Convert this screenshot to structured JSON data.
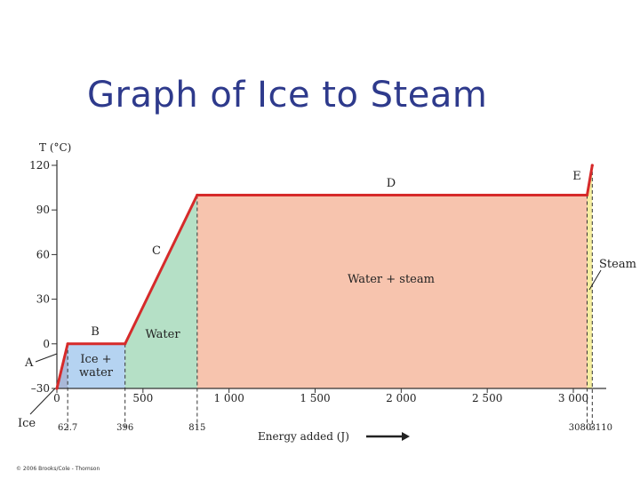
{
  "title": "Graph of Ice to Steam",
  "copyright": "© 2006 Brooks/Cole - Thomson",
  "chart_data": {
    "type": "line",
    "ylabel": "T (°C)",
    "xlabel": "Energy added (J)",
    "xlim": [
      0,
      3200
    ],
    "ylim": [
      -30,
      120
    ],
    "x_ticks": [
      0,
      500,
      1000,
      1500,
      2000,
      2500,
      3000
    ],
    "x_tick_labels": [
      "0",
      "500",
      "1 000",
      "1 500",
      "2 000",
      "2 500",
      "3 000"
    ],
    "y_ticks": [
      -30,
      0,
      30,
      60,
      90,
      120
    ],
    "y_tick_labels": [
      "–30",
      "0",
      "30",
      "60",
      "90",
      "120"
    ],
    "transition_markers": [
      {
        "x": 62.7,
        "label": "62.7"
      },
      {
        "x": 396,
        "label": "396"
      },
      {
        "x": 815,
        "label": "815"
      },
      {
        "x": 3080,
        "label": "3080"
      },
      {
        "x": 3110,
        "label": "3110"
      }
    ],
    "series": [
      {
        "x": [
          0,
          62.7,
          396,
          815,
          3080,
          3110
        ],
        "y": [
          -30,
          0,
          0,
          100,
          100,
          120
        ]
      }
    ],
    "segment_labels": [
      {
        "label": "A",
        "segment": 1
      },
      {
        "label": "B",
        "segment": 2
      },
      {
        "label": "C",
        "segment": 3
      },
      {
        "label": "D",
        "segment": 4
      },
      {
        "label": "E",
        "segment": 5
      }
    ],
    "regions": [
      {
        "from": 0,
        "to": 62.7,
        "color": "#a9b8d8",
        "label": "Ice"
      },
      {
        "from": 62.7,
        "to": 396,
        "color": "#b5d3f1",
        "label": "Ice + water"
      },
      {
        "from": 396,
        "to": 815,
        "color": "#b5e0c6",
        "label": "Water"
      },
      {
        "from": 815,
        "to": 3080,
        "color": "#f7c4ae",
        "label": "Water + steam"
      },
      {
        "from": 3080,
        "to": 3110,
        "color": "#f5eea0",
        "label": "Steam"
      }
    ],
    "line_color": "#d62a2a"
  }
}
